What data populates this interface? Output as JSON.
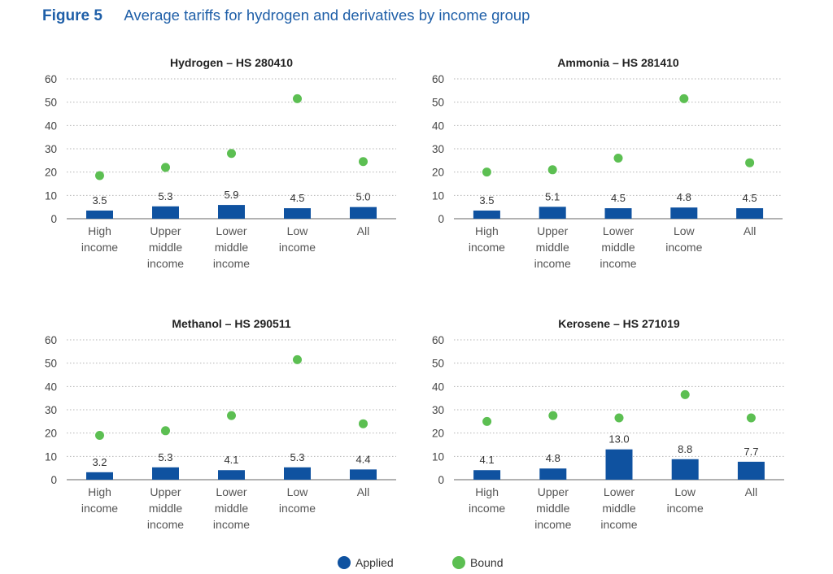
{
  "figure": {
    "label": "Figure 5",
    "title": "Average tariffs for hydrogen and derivatives by income group"
  },
  "legend": {
    "applied_label": "Applied",
    "bound_label": "Bound"
  },
  "colors": {
    "applied": "#0f52a0",
    "bound": "#5cbf52",
    "title": "#1f5fa8"
  },
  "chart_data": [
    {
      "type": "bar",
      "title": "Hydrogen – HS 280410",
      "categories": [
        [
          "High",
          "income"
        ],
        [
          "Upper",
          "middle",
          "income"
        ],
        [
          "Lower",
          "middle",
          "income"
        ],
        [
          "Low",
          "income"
        ],
        [
          "All"
        ]
      ],
      "series": [
        {
          "name": "Applied",
          "type": "bar",
          "values": [
            3.5,
            5.3,
            5.9,
            4.5,
            5.0
          ],
          "labels": [
            "3.5",
            "5.3",
            "5.9",
            "4.5",
            "5.0"
          ]
        },
        {
          "name": "Bound",
          "type": "scatter",
          "values": [
            18.5,
            22,
            28,
            51.5,
            24.5
          ]
        }
      ],
      "ylim": [
        0,
        60
      ],
      "yticks": [
        0,
        10,
        20,
        30,
        40,
        50,
        60
      ],
      "grid": true
    },
    {
      "type": "bar",
      "title": "Ammonia – HS 281410",
      "categories": [
        [
          "High",
          "income"
        ],
        [
          "Upper",
          "middle",
          "income"
        ],
        [
          "Lower",
          "middle",
          "income"
        ],
        [
          "Low",
          "income"
        ],
        [
          "All"
        ]
      ],
      "series": [
        {
          "name": "Applied",
          "type": "bar",
          "values": [
            3.5,
            5.1,
            4.5,
            4.8,
            4.5
          ],
          "labels": [
            "3.5",
            "5.1",
            "4.5",
            "4.8",
            "4.5"
          ]
        },
        {
          "name": "Bound",
          "type": "scatter",
          "values": [
            20,
            21,
            26,
            51.5,
            24
          ]
        }
      ],
      "ylim": [
        0,
        60
      ],
      "yticks": [
        0,
        10,
        20,
        30,
        40,
        50,
        60
      ],
      "grid": true
    },
    {
      "type": "bar",
      "title": "Methanol – HS 290511",
      "categories": [
        [
          "High",
          "income"
        ],
        [
          "Upper",
          "middle",
          "income"
        ],
        [
          "Lower",
          "middle",
          "income"
        ],
        [
          "Low",
          "income"
        ],
        [
          "All"
        ]
      ],
      "series": [
        {
          "name": "Applied",
          "type": "bar",
          "values": [
            3.2,
            5.3,
            4.1,
            5.3,
            4.4
          ],
          "labels": [
            "3.2",
            "5.3",
            "4.1",
            "5.3",
            "4.4"
          ]
        },
        {
          "name": "Bound",
          "type": "scatter",
          "values": [
            19,
            21,
            27.5,
            51.5,
            24
          ]
        }
      ],
      "ylim": [
        0,
        60
      ],
      "yticks": [
        0,
        10,
        20,
        30,
        40,
        50,
        60
      ],
      "grid": true
    },
    {
      "type": "bar",
      "title": "Kerosene – HS 271019",
      "categories": [
        [
          "High",
          "income"
        ],
        [
          "Upper",
          "middle",
          "income"
        ],
        [
          "Lower",
          "middle",
          "income"
        ],
        [
          "Low",
          "income"
        ],
        [
          "All"
        ]
      ],
      "series": [
        {
          "name": "Applied",
          "type": "bar",
          "values": [
            4.1,
            4.8,
            13.0,
            8.8,
            7.7
          ],
          "labels": [
            "4.1",
            "4.8",
            "13.0",
            "8.8",
            "7.7"
          ]
        },
        {
          "name": "Bound",
          "type": "scatter",
          "values": [
            25,
            27.5,
            26.5,
            36.5,
            26.5
          ]
        }
      ],
      "ylim": [
        0,
        60
      ],
      "yticks": [
        0,
        10,
        20,
        30,
        40,
        50,
        60
      ],
      "grid": true
    }
  ]
}
